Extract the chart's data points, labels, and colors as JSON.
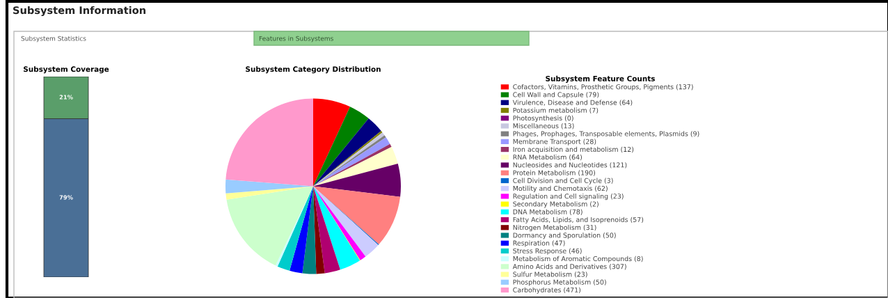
{
  "chart_data": [
    {
      "type": "bar",
      "title": "Subsystem Coverage",
      "stacked": true,
      "categories": [
        null
      ],
      "series": [
        {
          "color": "#4a6f96",
          "values": [
            79
          ],
          "value_labels": [
            "79%"
          ]
        },
        {
          "color": "#5a9e6a",
          "values": [
            21
          ],
          "value_labels": [
            "21%"
          ]
        }
      ],
      "annotations": [
        "Subsystem Information",
        "Subsystem Statistics",
        "Features in Subsystems"
      ]
    },
    {
      "type": "pie",
      "title": "Subsystem Category Distribution",
      "legend_title": "Subsystem Feature Counts",
      "legend": "right",
      "categories": [
        "Cofactors, Vitamins, Prosthetic Groups, Pigments (137)",
        "Cell Wall and Capsule (79)",
        "Virulence, Disease and Defense (64)",
        "Potassium metabolism (7)",
        "Photosynthesis (0)",
        "Miscellaneous (13)",
        "Phages, Prophages, Transposable elements, Plasmids (9)",
        "Membrane Transport (28)",
        "Iron acquisition and metabolism (12)",
        "RNA Metabolism (64)",
        "Nucleosides and Nucleotides (121)",
        "Protein Metabolism (190)",
        "Cell Division and Cell Cycle (3)",
        "Motility and Chemotaxis (62)",
        "Regulation and Cell signaling (23)",
        "Secondary Metabolism (2)",
        "DNA Metabolism (78)",
        "Fatty Acids, Lipids, and Isoprenoids (57)",
        "Nitrogen Metabolism (31)",
        "Dormancy and Sporulation (50)",
        "Respiration (47)",
        "Stress Response (46)",
        "Metabolism of Aromatic Compounds (8)",
        "Amino Acids and Derivatives (307)",
        "Sulfur Metabolism (23)",
        "Phosphorus Metabolism (50)",
        "Carbohydrates (471)"
      ],
      "values": [
        137,
        79,
        64,
        7,
        0,
        13,
        9,
        28,
        12,
        64,
        121,
        190,
        3,
        62,
        23,
        2,
        78,
        57,
        31,
        50,
        47,
        46,
        8,
        307,
        23,
        50,
        471
      ],
      "colors": [
        "#ff0000",
        "#008000",
        "#000080",
        "#808000",
        "#800080",
        "#c8c8e0",
        "#808080",
        "#9999ff",
        "#993366",
        "#ffffcc",
        "#660066",
        "#ff8080",
        "#0066cc",
        "#ccccff",
        "#ff00ff",
        "#ffff00",
        "#00ffff",
        "#b00070",
        "#800000",
        "#008080",
        "#0000ff",
        "#00cccc",
        "#ccffff",
        "#ccffcc",
        "#ffff99",
        "#99ccff",
        "#ff99cc"
      ]
    }
  ]
}
